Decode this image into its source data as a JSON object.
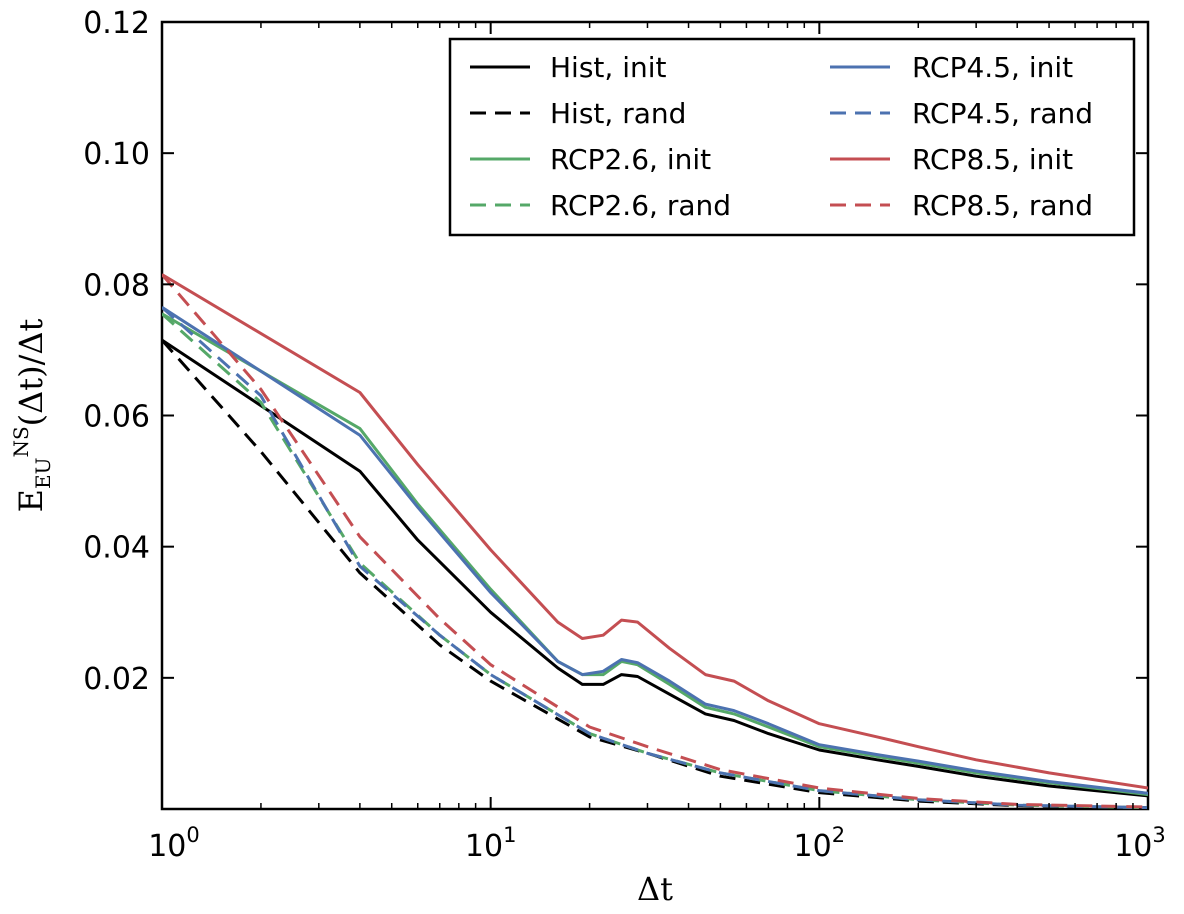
{
  "chart_data": {
    "type": "line",
    "xscale": "log",
    "xlim": [
      1,
      1000
    ],
    "ylim": [
      0.0,
      0.12
    ],
    "xlabel": "Δt",
    "ylabel": "E_EU^NS(Δt)/Δt",
    "ylabel_parts": {
      "base": "E",
      "sub": "EU",
      "sup": "NS",
      "rest": "(Δt)/Δt"
    },
    "x_ticks": [
      {
        "value": 1,
        "base": "10",
        "exp": "0"
      },
      {
        "value": 10,
        "base": "10",
        "exp": "1"
      },
      {
        "value": 100,
        "base": "10",
        "exp": "2"
      },
      {
        "value": 1000,
        "base": "10",
        "exp": "3"
      }
    ],
    "y_ticks": [
      {
        "value": 0.02,
        "label": "0.02"
      },
      {
        "value": 0.04,
        "label": "0.04"
      },
      {
        "value": 0.06,
        "label": "0.06"
      },
      {
        "value": 0.08,
        "label": "0.08"
      },
      {
        "value": 0.1,
        "label": "0.10"
      },
      {
        "value": 0.12,
        "label": "0.12"
      }
    ],
    "legend_position": "top-right",
    "legend_columns": 2,
    "series": [
      {
        "name": "Hist, init",
        "color": "#000000",
        "dash": "solid",
        "points": [
          [
            1,
            0.0715
          ],
          [
            4,
            0.0515
          ],
          [
            6,
            0.041
          ],
          [
            10,
            0.03
          ],
          [
            16,
            0.0215
          ],
          [
            19,
            0.019
          ],
          [
            22,
            0.019
          ],
          [
            25,
            0.0205
          ],
          [
            28,
            0.0202
          ],
          [
            35,
            0.0175
          ],
          [
            45,
            0.0145
          ],
          [
            55,
            0.0135
          ],
          [
            70,
            0.0115
          ],
          [
            100,
            0.009
          ],
          [
            150,
            0.0075
          ],
          [
            200,
            0.0065
          ],
          [
            300,
            0.005
          ],
          [
            500,
            0.0035
          ],
          [
            1000,
            0.002
          ]
        ]
      },
      {
        "name": "Hist, rand",
        "color": "#000000",
        "dash": "dashed",
        "points": [
          [
            1,
            0.0715
          ],
          [
            2,
            0.0545
          ],
          [
            4,
            0.036
          ],
          [
            7,
            0.025
          ],
          [
            10,
            0.0195
          ],
          [
            20,
            0.011
          ],
          [
            30,
            0.0085
          ],
          [
            50,
            0.005
          ],
          [
            100,
            0.0025
          ],
          [
            200,
            0.0012
          ],
          [
            400,
            0.0005
          ],
          [
            1000,
            0.0002
          ]
        ]
      },
      {
        "name": "RCP2.6, init",
        "color": "#55a868",
        "dash": "solid",
        "points": [
          [
            1,
            0.0755
          ],
          [
            4,
            0.058
          ],
          [
            6,
            0.0465
          ],
          [
            10,
            0.0335
          ],
          [
            16,
            0.0225
          ],
          [
            19,
            0.0205
          ],
          [
            22,
            0.0205
          ],
          [
            25,
            0.0225
          ],
          [
            28,
            0.022
          ],
          [
            35,
            0.019
          ],
          [
            45,
            0.0155
          ],
          [
            55,
            0.0145
          ],
          [
            70,
            0.0125
          ],
          [
            100,
            0.0095
          ],
          [
            150,
            0.008
          ],
          [
            200,
            0.007
          ],
          [
            300,
            0.0055
          ],
          [
            500,
            0.004
          ],
          [
            1000,
            0.0022
          ]
        ]
      },
      {
        "name": "RCP2.6, rand",
        "color": "#55a868",
        "dash": "dashed",
        "points": [
          [
            1,
            0.0755
          ],
          [
            2,
            0.062
          ],
          [
            4,
            0.0375
          ],
          [
            7,
            0.0265
          ],
          [
            10,
            0.0205
          ],
          [
            20,
            0.0115
          ],
          [
            30,
            0.0085
          ],
          [
            50,
            0.0055
          ],
          [
            100,
            0.0028
          ],
          [
            200,
            0.0014
          ],
          [
            400,
            0.0006
          ],
          [
            1000,
            0.0002
          ]
        ]
      },
      {
        "name": "RCP4.5, init",
        "color": "#4c72b0",
        "dash": "solid",
        "points": [
          [
            1,
            0.0765
          ],
          [
            4,
            0.057
          ],
          [
            6,
            0.046
          ],
          [
            10,
            0.033
          ],
          [
            16,
            0.0225
          ],
          [
            19,
            0.0205
          ],
          [
            22,
            0.021
          ],
          [
            25,
            0.0228
          ],
          [
            28,
            0.0223
          ],
          [
            35,
            0.0195
          ],
          [
            45,
            0.016
          ],
          [
            55,
            0.015
          ],
          [
            70,
            0.013
          ],
          [
            100,
            0.0098
          ],
          [
            150,
            0.0083
          ],
          [
            200,
            0.0073
          ],
          [
            300,
            0.0058
          ],
          [
            500,
            0.0042
          ],
          [
            1000,
            0.0024
          ]
        ]
      },
      {
        "name": "RCP4.5, rand",
        "color": "#4c72b0",
        "dash": "dashed",
        "points": [
          [
            1,
            0.0765
          ],
          [
            2,
            0.063
          ],
          [
            4,
            0.037
          ],
          [
            7,
            0.0265
          ],
          [
            10,
            0.0205
          ],
          [
            20,
            0.0115
          ],
          [
            30,
            0.0085
          ],
          [
            50,
            0.0055
          ],
          [
            100,
            0.0028
          ],
          [
            200,
            0.0014
          ],
          [
            400,
            0.0006
          ],
          [
            1000,
            0.0002
          ]
        ]
      },
      {
        "name": "RCP8.5, init",
        "color": "#c44e52",
        "dash": "solid",
        "points": [
          [
            1,
            0.0815
          ],
          [
            4,
            0.0635
          ],
          [
            6,
            0.0525
          ],
          [
            10,
            0.0395
          ],
          [
            16,
            0.0285
          ],
          [
            19,
            0.026
          ],
          [
            22,
            0.0265
          ],
          [
            25,
            0.0288
          ],
          [
            28,
            0.0285
          ],
          [
            35,
            0.0245
          ],
          [
            45,
            0.0205
          ],
          [
            55,
            0.0195
          ],
          [
            70,
            0.0165
          ],
          [
            100,
            0.013
          ],
          [
            150,
            0.011
          ],
          [
            200,
            0.0095
          ],
          [
            300,
            0.0075
          ],
          [
            500,
            0.0055
          ],
          [
            1000,
            0.0032
          ]
        ]
      },
      {
        "name": "RCP8.5, rand",
        "color": "#c44e52",
        "dash": "dashed",
        "points": [
          [
            1,
            0.0815
          ],
          [
            2,
            0.064
          ],
          [
            4,
            0.0415
          ],
          [
            7,
            0.029
          ],
          [
            10,
            0.022
          ],
          [
            20,
            0.0125
          ],
          [
            30,
            0.0095
          ],
          [
            50,
            0.006
          ],
          [
            100,
            0.0032
          ],
          [
            200,
            0.0016
          ],
          [
            400,
            0.0007
          ],
          [
            1000,
            0.0003
          ]
        ]
      }
    ]
  }
}
